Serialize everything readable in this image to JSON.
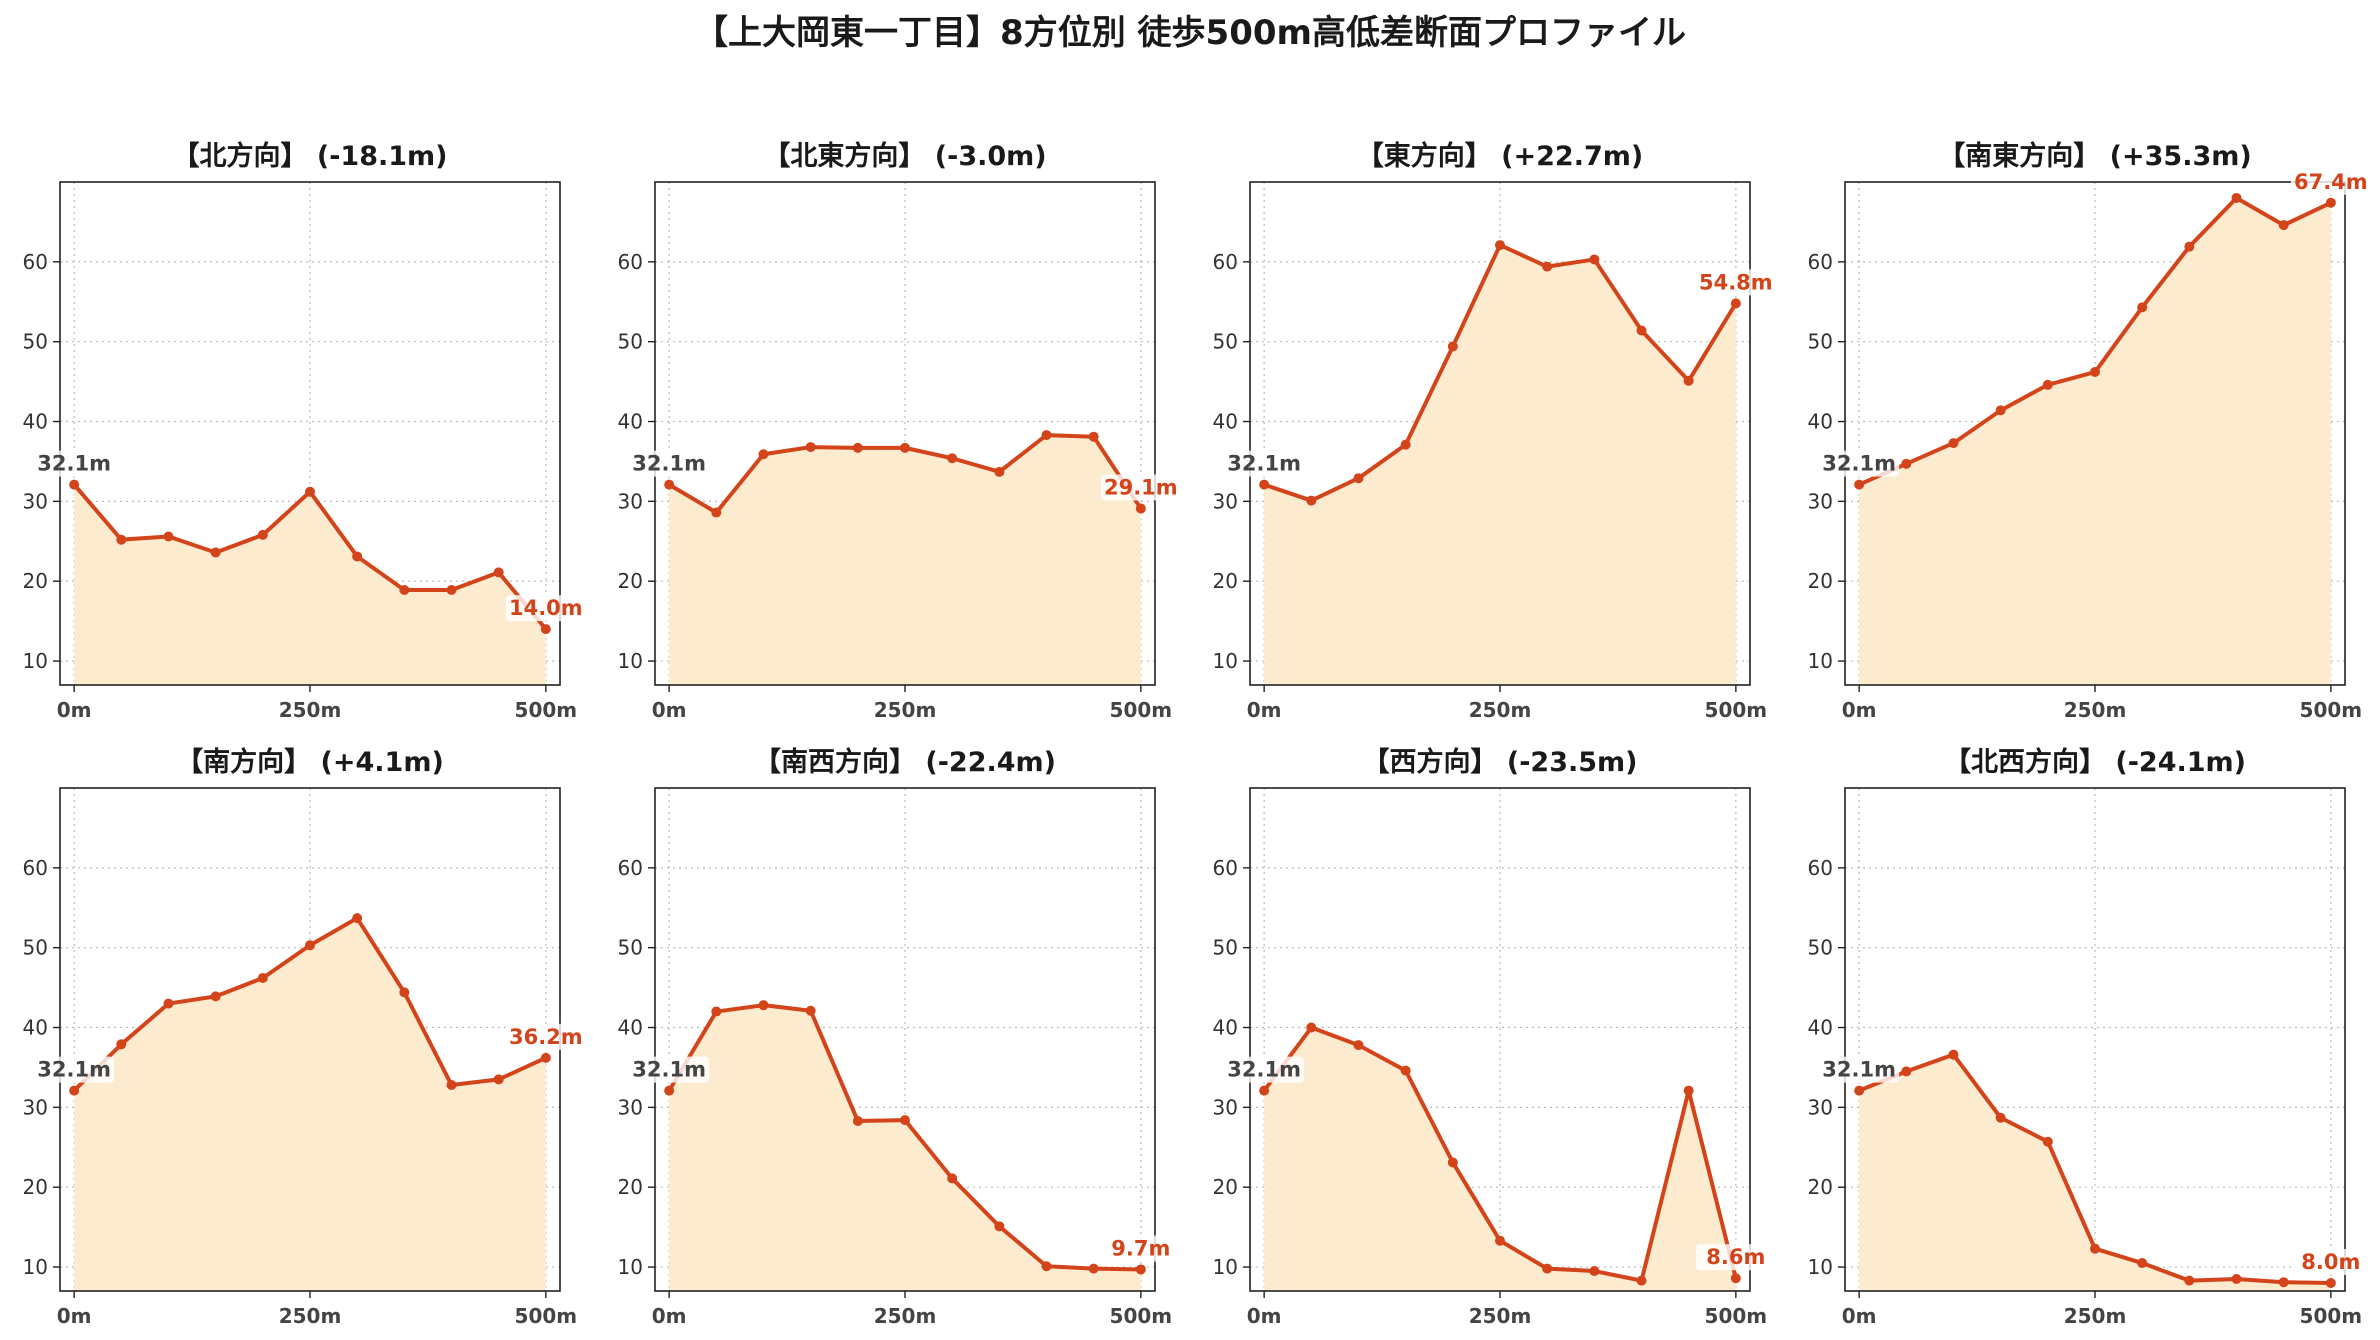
{
  "title": "【上大岡東一丁目】8方位別 徒歩500m高低差断面プロファイル",
  "colors": {
    "line": "#d4441a",
    "fill": "#fdebd0",
    "grid": "#bbbbbb",
    "axis": "#222222"
  },
  "chart_data": [
    {
      "type": "area",
      "title": "【北方向】 (-18.1m)",
      "x": [
        0,
        50,
        100,
        150,
        200,
        250,
        300,
        350,
        400,
        450,
        500
      ],
      "y": [
        32.1,
        25.2,
        25.6,
        23.6,
        25.8,
        31.2,
        23.1,
        18.9,
        18.9,
        21.1,
        14.0
      ],
      "start_label": "32.1m",
      "end_label": "14.0m",
      "xticks": [
        "0m",
        "250m",
        "500m"
      ],
      "yticks": [
        10,
        20,
        30,
        40,
        50,
        60
      ],
      "xlim": [
        -15,
        515
      ],
      "ylim": [
        7,
        70
      ],
      "grid": true
    },
    {
      "type": "area",
      "title": "【北東方向】 (-3.0m)",
      "x": [
        0,
        50,
        100,
        150,
        200,
        250,
        300,
        350,
        400,
        450,
        500
      ],
      "y": [
        32.1,
        28.6,
        35.9,
        36.8,
        36.7,
        36.7,
        35.4,
        33.7,
        38.3,
        38.1,
        29.1
      ],
      "start_label": "32.1m",
      "end_label": "29.1m",
      "xticks": [
        "0m",
        "250m",
        "500m"
      ],
      "yticks": [
        10,
        20,
        30,
        40,
        50,
        60
      ],
      "xlim": [
        -15,
        515
      ],
      "ylim": [
        7,
        70
      ],
      "grid": true
    },
    {
      "type": "area",
      "title": "【東方向】 (+22.7m)",
      "x": [
        0,
        50,
        100,
        150,
        200,
        250,
        300,
        350,
        400,
        450,
        500
      ],
      "y": [
        32.1,
        30.1,
        32.9,
        37.1,
        49.4,
        62.1,
        59.4,
        60.3,
        51.4,
        45.1,
        54.8
      ],
      "start_label": "32.1m",
      "end_label": "54.8m",
      "xticks": [
        "0m",
        "250m",
        "500m"
      ],
      "yticks": [
        10,
        20,
        30,
        40,
        50,
        60
      ],
      "xlim": [
        -15,
        515
      ],
      "ylim": [
        7,
        70
      ],
      "grid": true
    },
    {
      "type": "area",
      "title": "【南東方向】 (+35.3m)",
      "x": [
        0,
        50,
        100,
        150,
        200,
        250,
        300,
        350,
        400,
        450,
        500
      ],
      "y": [
        32.1,
        34.7,
        37.3,
        41.4,
        44.6,
        46.2,
        54.3,
        61.9,
        68.0,
        64.6,
        67.4
      ],
      "start_label": "32.1m",
      "end_label": "67.4m",
      "xticks": [
        "0m",
        "250m",
        "500m"
      ],
      "yticks": [
        10,
        20,
        30,
        40,
        50,
        60
      ],
      "xlim": [
        -15,
        515
      ],
      "ylim": [
        7,
        70
      ],
      "grid": true
    },
    {
      "type": "area",
      "title": "【南方向】 (+4.1m)",
      "x": [
        0,
        50,
        100,
        150,
        200,
        250,
        300,
        350,
        400,
        450,
        500
      ],
      "y": [
        32.1,
        37.9,
        43.0,
        43.9,
        46.2,
        50.3,
        53.7,
        44.4,
        32.8,
        33.5,
        36.2
      ],
      "start_label": "32.1m",
      "end_label": "36.2m",
      "xticks": [
        "0m",
        "250m",
        "500m"
      ],
      "yticks": [
        10,
        20,
        30,
        40,
        50,
        60
      ],
      "xlim": [
        -15,
        515
      ],
      "ylim": [
        7,
        70
      ],
      "grid": true
    },
    {
      "type": "area",
      "title": "【南西方向】 (-22.4m)",
      "x": [
        0,
        50,
        100,
        150,
        200,
        250,
        300,
        350,
        400,
        450,
        500
      ],
      "y": [
        32.1,
        42.0,
        42.8,
        42.1,
        28.3,
        28.4,
        21.1,
        15.1,
        10.1,
        9.8,
        9.7
      ],
      "start_label": "32.1m",
      "end_label": "9.7m",
      "xticks": [
        "0m",
        "250m",
        "500m"
      ],
      "yticks": [
        10,
        20,
        30,
        40,
        50,
        60
      ],
      "xlim": [
        -15,
        515
      ],
      "ylim": [
        7,
        70
      ],
      "grid": true
    },
    {
      "type": "area",
      "title": "【西方向】 (-23.5m)",
      "x": [
        0,
        50,
        100,
        150,
        200,
        250,
        300,
        350,
        400,
        450,
        500
      ],
      "y": [
        32.1,
        40.0,
        37.8,
        34.6,
        23.1,
        13.3,
        9.8,
        9.5,
        8.3,
        32.1,
        8.6
      ],
      "start_label": "32.1m",
      "end_label": "8.6m",
      "xticks": [
        "0m",
        "250m",
        "500m"
      ],
      "yticks": [
        10,
        20,
        30,
        40,
        50,
        60
      ],
      "xlim": [
        -15,
        515
      ],
      "ylim": [
        7,
        70
      ],
      "grid": true
    },
    {
      "type": "area",
      "title": "【北西方向】 (-24.1m)",
      "x": [
        0,
        50,
        100,
        150,
        200,
        250,
        300,
        350,
        400,
        450,
        500
      ],
      "y": [
        32.1,
        34.5,
        36.6,
        28.7,
        25.7,
        12.3,
        10.5,
        8.3,
        8.5,
        8.1,
        8.0
      ],
      "start_label": "32.1m",
      "end_label": "8.0m",
      "xticks": [
        "0m",
        "250m",
        "500m"
      ],
      "yticks": [
        10,
        20,
        30,
        40,
        50,
        60
      ],
      "xlim": [
        -15,
        515
      ],
      "ylim": [
        7,
        70
      ],
      "grid": true
    }
  ]
}
